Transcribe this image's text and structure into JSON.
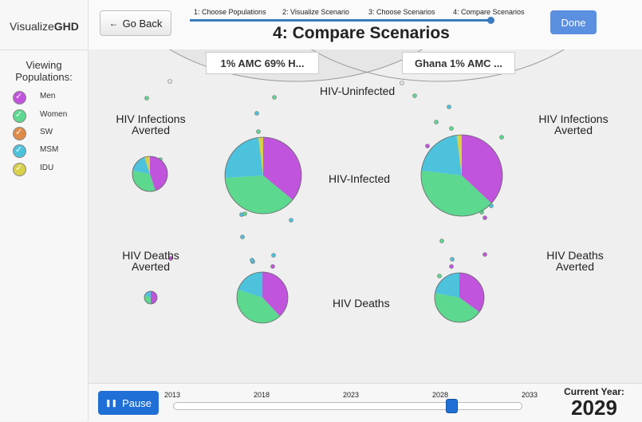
{
  "app": {
    "logo_regular": "Visualize",
    "logo_bold": "GHD"
  },
  "sidebar": {
    "title": "Viewing Populations:",
    "populations": [
      {
        "label": "Men",
        "color": "#c054dc"
      },
      {
        "label": "Women",
        "color": "#5cd88f"
      },
      {
        "label": "SW",
        "color": "#e08a4a"
      },
      {
        "label": "MSM",
        "color": "#4cc2dc"
      },
      {
        "label": "IDU",
        "color": "#d8d04a"
      }
    ]
  },
  "header": {
    "back_label": "Go Back",
    "done_label": "Done",
    "steps": [
      "1: Choose Populations",
      "2: Visualize Scenario",
      "3: Choose Scenarios",
      "4: Compare Scenarios"
    ],
    "title": "4: Compare Scenarios"
  },
  "scenarios": [
    {
      "label": "1% AMC 69% H..."
    },
    {
      "label": "Ghana 1% AMC ..."
    }
  ],
  "labels": {
    "uninfected": "HIV-Uninfected",
    "infected": "HIV-Infected",
    "deaths": "HIV Deaths",
    "infections_averted_1": "HIV Infections",
    "infections_averted_2": "Averted",
    "deaths_averted_1": "HIV Deaths",
    "deaths_averted_2": "Averted"
  },
  "footer": {
    "pause_label": "Pause",
    "year_ticks": [
      "2013",
      "2018",
      "2023",
      "2028",
      "2033"
    ],
    "current_year_label": "Current Year:",
    "current_year": "2029",
    "slider_range": [
      2013,
      2033
    ]
  },
  "pies": [
    {
      "name": "left-infections-averted-pie",
      "slices": [
        {
          "pop": "Men",
          "value": 0.45
        },
        {
          "pop": "Women",
          "value": 0.33
        },
        {
          "pop": "MSM",
          "value": 0.17
        },
        {
          "pop": "IDU",
          "value": 0.05
        }
      ]
    },
    {
      "name": "left-infected-pie",
      "slices": [
        {
          "pop": "Men",
          "value": 0.36
        },
        {
          "pop": "Women",
          "value": 0.38
        },
        {
          "pop": "MSM",
          "value": 0.24
        },
        {
          "pop": "IDU",
          "value": 0.02
        }
      ]
    },
    {
      "name": "right-infected-pie",
      "slices": [
        {
          "pop": "Men",
          "value": 0.37
        },
        {
          "pop": "Women",
          "value": 0.4
        },
        {
          "pop": "MSM",
          "value": 0.21
        },
        {
          "pop": "IDU",
          "value": 0.02
        }
      ]
    },
    {
      "name": "left-deaths-averted-pie",
      "slices": [
        {
          "pop": "Men",
          "value": 0.5
        },
        {
          "pop": "Women",
          "value": 0.3
        },
        {
          "pop": "MSM",
          "value": 0.2
        }
      ]
    },
    {
      "name": "left-deaths-pie",
      "slices": [
        {
          "pop": "Men",
          "value": 0.38
        },
        {
          "pop": "Women",
          "value": 0.42
        },
        {
          "pop": "MSM",
          "value": 0.2
        }
      ]
    },
    {
      "name": "right-deaths-pie",
      "slices": [
        {
          "pop": "Men",
          "value": 0.35
        },
        {
          "pop": "Women",
          "value": 0.43
        },
        {
          "pop": "MSM",
          "value": 0.22
        }
      ]
    }
  ]
}
